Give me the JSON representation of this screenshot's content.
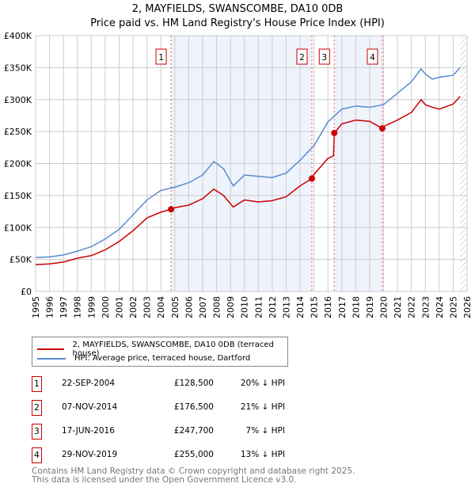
{
  "chart_data": {
    "type": "line",
    "title": "2, MAYFIELDS, SWANSCOMBE, DA10 0DB",
    "subtitle": "Price paid vs. HM Land Registry's House Price Index (HPI)",
    "xlim": [
      1995,
      2026
    ],
    "ylim": [
      0,
      400000
    ],
    "yticks": [
      {
        "v": 0,
        "label": "£0"
      },
      {
        "v": 50000,
        "label": "£50K"
      },
      {
        "v": 100000,
        "label": "£100K"
      },
      {
        "v": 150000,
        "label": "£150K"
      },
      {
        "v": 200000,
        "label": "£200K"
      },
      {
        "v": 250000,
        "label": "£250K"
      },
      {
        "v": 300000,
        "label": "£300K"
      },
      {
        "v": 350000,
        "label": "£350K"
      },
      {
        "v": 400000,
        "label": "£400K"
      }
    ],
    "xticks": [
      "1995",
      "1996",
      "1997",
      "1998",
      "1999",
      "2000",
      "2001",
      "2002",
      "2003",
      "2004",
      "2005",
      "2006",
      "2007",
      "2008",
      "2009",
      "2010",
      "2011",
      "2012",
      "2013",
      "2014",
      "2015",
      "2016",
      "2017",
      "2018",
      "2019",
      "2020",
      "2021",
      "2022",
      "2023",
      "2024",
      "2025",
      "2026"
    ],
    "grid": true,
    "series": [
      {
        "name": "2, MAYFIELDS, SWANSCOMBE, DA10 0DB (terraced house)",
        "color": "#cc0000",
        "x": [
          1995,
          1996,
          1997,
          1998,
          1999,
          2000,
          2001,
          2002,
          2003,
          2004,
          2004.73,
          2005,
          2006,
          2007,
          2007.8,
          2008.5,
          2009.2,
          2010,
          2011,
          2012,
          2013,
          2014,
          2014.85,
          2015,
          2016,
          2016.4,
          2016.46,
          2017,
          2018,
          2019,
          2019.91,
          2020,
          2021,
          2022,
          2022.7,
          2023,
          2023.5,
          2024,
          2025,
          2025.5
        ],
        "y": [
          42000,
          43000,
          46000,
          52000,
          56000,
          65000,
          78000,
          95000,
          115000,
          124000,
          128500,
          131000,
          135000,
          145000,
          160000,
          150000,
          132000,
          143000,
          140000,
          142000,
          148000,
          165000,
          176500,
          183000,
          208000,
          212000,
          247700,
          262000,
          268000,
          266000,
          255000,
          258000,
          268000,
          280000,
          300000,
          292000,
          288000,
          285000,
          293000,
          305000
        ]
      },
      {
        "name": "HPI: Average price, terraced house, Dartford",
        "color": "#5b8bd0",
        "x": [
          1995,
          1996,
          1997,
          1998,
          1999,
          2000,
          2001,
          2002,
          2003,
          2004,
          2005,
          2006,
          2007,
          2007.8,
          2008.5,
          2009.2,
          2010,
          2011,
          2012,
          2013,
          2014,
          2015,
          2016,
          2017,
          2018,
          2019,
          2020,
          2021,
          2022,
          2022.7,
          2023,
          2023.5,
          2024,
          2025,
          2025.5
        ],
        "y": [
          53000,
          54000,
          57000,
          63000,
          70000,
          82000,
          97000,
          120000,
          143000,
          158000,
          163000,
          170000,
          182000,
          203000,
          192000,
          165000,
          182000,
          180000,
          178000,
          185000,
          205000,
          228000,
          265000,
          285000,
          290000,
          288000,
          292000,
          310000,
          328000,
          348000,
          340000,
          332000,
          335000,
          338000,
          350000
        ]
      }
    ],
    "sales": [
      {
        "n": "1",
        "x": 2004.73,
        "y": 128500
      },
      {
        "n": "2",
        "x": 2014.85,
        "y": 176500
      },
      {
        "n": "3",
        "x": 2016.46,
        "y": 247700
      },
      {
        "n": "4",
        "x": 2019.91,
        "y": 255000
      }
    ],
    "shaded": [
      [
        2004.73,
        2014.85
      ],
      [
        2016.46,
        2019.91
      ]
    ],
    "hatched_from": 2025.5
  },
  "table": [
    {
      "n": "1",
      "date": "22-SEP-2004",
      "price": "£128,500",
      "hpi": "20% ↓ HPI"
    },
    {
      "n": "2",
      "date": "07-NOV-2014",
      "price": "£176,500",
      "hpi": "21% ↓ HPI"
    },
    {
      "n": "3",
      "date": "17-JUN-2016",
      "price": "£247,700",
      "hpi": "7% ↓ HPI"
    },
    {
      "n": "4",
      "date": "29-NOV-2019",
      "price": "£255,000",
      "hpi": "13% ↓ HPI"
    }
  ],
  "footer": {
    "line1": "Contains HM Land Registry data © Crown copyright and database right 2025.",
    "line2": "This data is licensed under the Open Government Licence v3.0."
  }
}
